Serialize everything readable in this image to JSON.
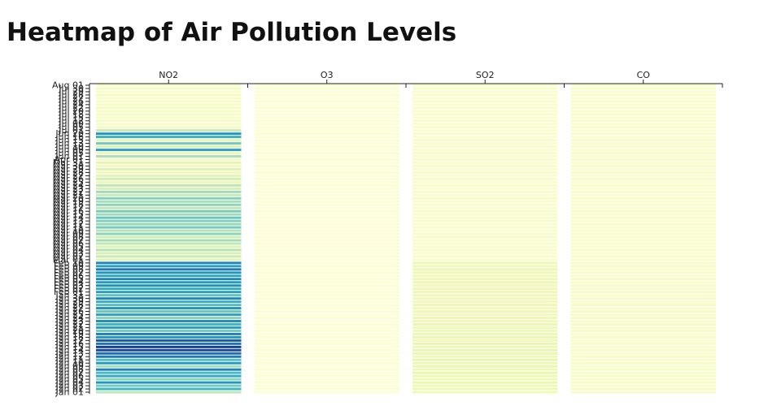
{
  "title": "Heatmap of Air Pollution Levels",
  "chart_data": {
    "type": "heatmap",
    "title": "Heatmap of Air Pollution Levels",
    "columns": [
      "NO2",
      "O3",
      "SO2",
      "CO"
    ],
    "color_scale": [
      "#ffffd9",
      "#edf8b1",
      "#c7e9b4",
      "#7fcdbb",
      "#41b6c4",
      "#1d91c0",
      "#225ea8",
      "#0c2c84"
    ],
    "row_labels": [
      "Jan 01",
      "Jan 02",
      "Jan 03",
      "Jan 04",
      "Jan 05",
      "Jan 06",
      "Jan 07",
      "Jan 08",
      "Jan 09",
      "Jan 10",
      "Jan 11",
      "Jan 12",
      "Jan 13",
      "Jan 14",
      "Jan 15",
      "Jan 16",
      "Jan 17",
      "Jan 18",
      "Jan 19",
      "Jan 20",
      "Jan 21",
      "Jan 22",
      "Jan 23",
      "Jan 24",
      "Jan 25",
      "Jan 26",
      "Jan 27",
      "Jan 28",
      "Jan 29",
      "Jan 30",
      "Jan 31",
      "Feb 01",
      "Feb 02",
      "Feb 03",
      "Feb 04",
      "Feb 05",
      "Feb 06",
      "Feb 07",
      "Feb 08",
      "Feb 09",
      "Feb 10",
      "Mar 01",
      "Mar 02",
      "Mar 03",
      "Mar 04",
      "Mar 05",
      "Mar 06",
      "Mar 07",
      "Mar 08",
      "Mar 09",
      "Mar 10",
      "Mar 11",
      "Mar 12",
      "Mar 13",
      "Mar 14",
      "Mar 15",
      "Mar 16",
      "Mar 17",
      "Mar 18",
      "Mar 19",
      "Mar 20",
      "Mar 21",
      "Mar 22",
      "Mar 23",
      "Mar 24",
      "Mar 25",
      "Mar 26",
      "Mar 27",
      "Mar 28",
      "Mar 29",
      "Mar 30",
      "Mar 31",
      "Apr 01",
      "Jun 01",
      "Jun 05",
      "Jun 09",
      "Jun 10",
      "Jun 13",
      "Jun 15",
      "Jun 16",
      "Jun 20",
      "Jul 01",
      "Jul 05",
      "Jul 09",
      "Jul 12",
      "Jul 15",
      "Jul 18",
      "Jul 20",
      "Jul 22",
      "Jul 24",
      "Jul 26",
      "Jul 27",
      "Jul 28",
      "Jul 29",
      "Jul 30",
      "Aug 01"
    ],
    "values": {
      "NO2": [
        0.3,
        0.58,
        0.45,
        0.7,
        0.4,
        0.62,
        0.55,
        0.75,
        0.35,
        0.68,
        0.52,
        0.78,
        0.82,
        0.92,
        0.95,
        0.8,
        0.88,
        0.7,
        0.76,
        0.45,
        0.66,
        0.58,
        0.72,
        0.4,
        0.64,
        0.48,
        0.7,
        0.52,
        0.6,
        0.74,
        0.5,
        0.66,
        0.62,
        0.72,
        0.68,
        0.74,
        0.64,
        0.7,
        0.78,
        0.66,
        0.74,
        0.18,
        0.28,
        0.22,
        0.32,
        0.2,
        0.3,
        0.35,
        0.25,
        0.4,
        0.32,
        0.45,
        0.38,
        0.42,
        0.48,
        0.36,
        0.44,
        0.3,
        0.4,
        0.35,
        0.42,
        0.28,
        0.36,
        0.22,
        0.3,
        0.14,
        0.24,
        0.18,
        0.12,
        0.2,
        0.1,
        0.16,
        0.08,
        0.34,
        0.12,
        0.65,
        0.2,
        0.45,
        0.15,
        0.6,
        0.7,
        0.28,
        0.08,
        0.07,
        0.09,
        0.06,
        0.08,
        0.07,
        0.09,
        0.06,
        0.08,
        0.07,
        0.09,
        0.06,
        0.08,
        0.07
      ],
      "O3": [
        0.02,
        0.03,
        0.02,
        0.03,
        0.02,
        0.03,
        0.02,
        0.03,
        0.02,
        0.03,
        0.02,
        0.03,
        0.02,
        0.03,
        0.02,
        0.03,
        0.02,
        0.03,
        0.02,
        0.03,
        0.02,
        0.03,
        0.02,
        0.03,
        0.02,
        0.03,
        0.02,
        0.03,
        0.02,
        0.03,
        0.02,
        0.03,
        0.02,
        0.03,
        0.02,
        0.03,
        0.02,
        0.03,
        0.02,
        0.03,
        0.02,
        0.02,
        0.03,
        0.02,
        0.03,
        0.02,
        0.03,
        0.02,
        0.03,
        0.02,
        0.03,
        0.02,
        0.03,
        0.02,
        0.03,
        0.02,
        0.03,
        0.02,
        0.03,
        0.02,
        0.03,
        0.02,
        0.03,
        0.02,
        0.03,
        0.02,
        0.03,
        0.02,
        0.03,
        0.02,
        0.03,
        0.02,
        0.03,
        0.02,
        0.03,
        0.02,
        0.03,
        0.02,
        0.03,
        0.02,
        0.03,
        0.02,
        0.03,
        0.02,
        0.03,
        0.02,
        0.03,
        0.02,
        0.03,
        0.02,
        0.03,
        0.02,
        0.03,
        0.02,
        0.03,
        0.02
      ],
      "SO2": [
        0.12,
        0.14,
        0.13,
        0.15,
        0.12,
        0.14,
        0.16,
        0.13,
        0.15,
        0.14,
        0.16,
        0.12,
        0.15,
        0.17,
        0.14,
        0.16,
        0.13,
        0.15,
        0.14,
        0.12,
        0.13,
        0.15,
        0.12,
        0.14,
        0.11,
        0.13,
        0.12,
        0.14,
        0.11,
        0.13,
        0.12,
        0.14,
        0.13,
        0.12,
        0.14,
        0.13,
        0.12,
        0.13,
        0.14,
        0.12,
        0.13,
        0.05,
        0.06,
        0.05,
        0.07,
        0.05,
        0.06,
        0.05,
        0.07,
        0.06,
        0.05,
        0.06,
        0.05,
        0.07,
        0.06,
        0.05,
        0.06,
        0.05,
        0.06,
        0.05,
        0.07,
        0.05,
        0.06,
        0.05,
        0.06,
        0.05,
        0.06,
        0.05,
        0.06,
        0.05,
        0.06,
        0.05,
        0.06,
        0.05,
        0.06,
        0.05,
        0.06,
        0.05,
        0.06,
        0.05,
        0.06,
        0.05,
        0.06,
        0.05,
        0.06,
        0.05,
        0.06,
        0.05,
        0.06,
        0.05,
        0.06,
        0.05,
        0.06,
        0.05,
        0.06,
        0.05
      ],
      "CO": [
        0.06,
        0.07,
        0.06,
        0.07,
        0.06,
        0.07,
        0.06,
        0.07,
        0.06,
        0.07,
        0.06,
        0.07,
        0.06,
        0.07,
        0.06,
        0.07,
        0.06,
        0.07,
        0.06,
        0.07,
        0.06,
        0.07,
        0.06,
        0.07,
        0.06,
        0.07,
        0.06,
        0.07,
        0.06,
        0.07,
        0.06,
        0.07,
        0.06,
        0.07,
        0.06,
        0.07,
        0.06,
        0.07,
        0.06,
        0.07,
        0.06,
        0.05,
        0.06,
        0.05,
        0.06,
        0.05,
        0.06,
        0.05,
        0.06,
        0.05,
        0.06,
        0.05,
        0.06,
        0.05,
        0.06,
        0.05,
        0.06,
        0.05,
        0.06,
        0.05,
        0.06,
        0.05,
        0.06,
        0.05,
        0.06,
        0.05,
        0.06,
        0.05,
        0.06,
        0.05,
        0.06,
        0.05,
        0.06,
        0.05,
        0.06,
        0.05,
        0.06,
        0.05,
        0.06,
        0.05,
        0.06,
        0.05,
        0.06,
        0.05,
        0.06,
        0.05,
        0.06,
        0.05,
        0.06,
        0.05,
        0.06,
        0.05,
        0.06,
        0.05,
        0.06,
        0.05
      ]
    },
    "value_range": [
      0,
      1
    ],
    "legend": "none",
    "grid": false
  }
}
